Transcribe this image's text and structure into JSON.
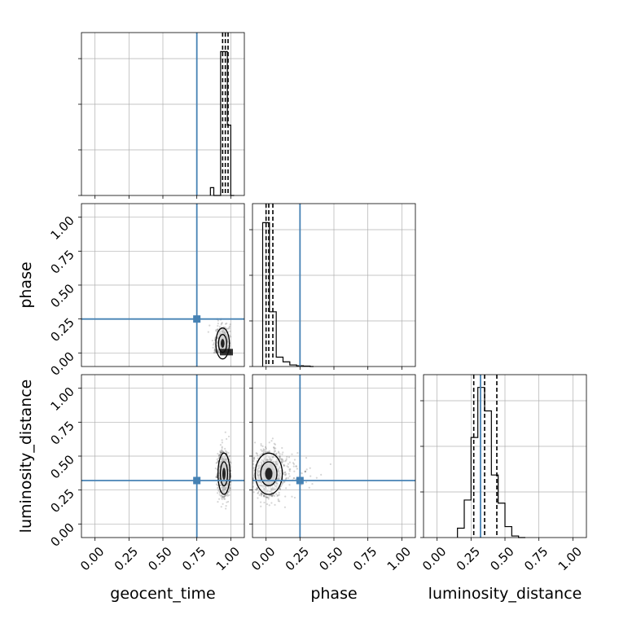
{
  "chart_data": {
    "type": "corner",
    "parameters": [
      "geocent_time",
      "phase",
      "luminosity_distance"
    ],
    "axis_range": [
      -0.1,
      1.1
    ],
    "tick_values": [
      0.0,
      0.25,
      0.5,
      0.75,
      1.0
    ],
    "tick_labels": [
      "0.00",
      "0.25",
      "0.50",
      "0.75",
      "1.00"
    ],
    "grid": true,
    "colors": {
      "truth": "#4682b4",
      "hist": "#000000",
      "points": "#000000",
      "grid": "#b0b0b0"
    },
    "truths": {
      "geocent_time": 0.75,
      "phase": 0.25,
      "luminosity_distance": 0.32
    },
    "quantiles": {
      "geocent_time": [
        0.94,
        0.96,
        0.98
      ],
      "phase": [
        0.0,
        0.02,
        0.05
      ],
      "luminosity_distance": [
        0.27,
        0.35,
        0.44
      ]
    },
    "histograms": {
      "geocent_time": {
        "edges": [
          0.85,
          0.875,
          0.9,
          0.925,
          0.95,
          0.975,
          1.0,
          1.025
        ],
        "counts": [
          0.05,
          0.0,
          0.0,
          0.92,
          0.92,
          0.45,
          0.0
        ]
      },
      "phase": {
        "edges": [
          -0.025,
          0.0,
          0.025,
          0.05,
          0.075,
          0.1,
          0.125,
          0.15,
          0.175,
          0.2,
          0.225,
          0.25,
          0.275,
          0.3,
          0.325,
          0.35
        ],
        "counts": [
          0.92,
          0.92,
          0.35,
          0.35,
          0.06,
          0.06,
          0.03,
          0.03,
          0.01,
          0.01,
          0.005,
          0.005,
          0.003,
          0.003,
          0.0
        ]
      },
      "luminosity_distance": {
        "edges": [
          0.15,
          0.2,
          0.25,
          0.3,
          0.35,
          0.4,
          0.45,
          0.5,
          0.55,
          0.6,
          0.65
        ],
        "counts": [
          0.06,
          0.24,
          0.64,
          0.96,
          0.81,
          0.4,
          0.22,
          0.07,
          0.01,
          0.0
        ]
      }
    },
    "scatter": {
      "geocent_time_phase": {
        "x_center": 0.94,
        "x_spread": 0.025,
        "y_center": 0.07,
        "y_spread": 0.06,
        "n": 700
      },
      "geocent_time_luminosity_distance": {
        "x_center": 0.95,
        "x_spread": 0.022,
        "y_center": 0.37,
        "y_spread": 0.08,
        "n": 900
      },
      "phase_luminosity_distance": {
        "x_center": 0.02,
        "x_spread": 0.05,
        "y_center": 0.37,
        "y_spread": 0.08,
        "n": 1100
      }
    },
    "xlabels": [
      "geocent_time",
      "phase",
      "luminosity_distance"
    ],
    "ylabels": [
      "phase",
      "luminosity_distance"
    ]
  }
}
